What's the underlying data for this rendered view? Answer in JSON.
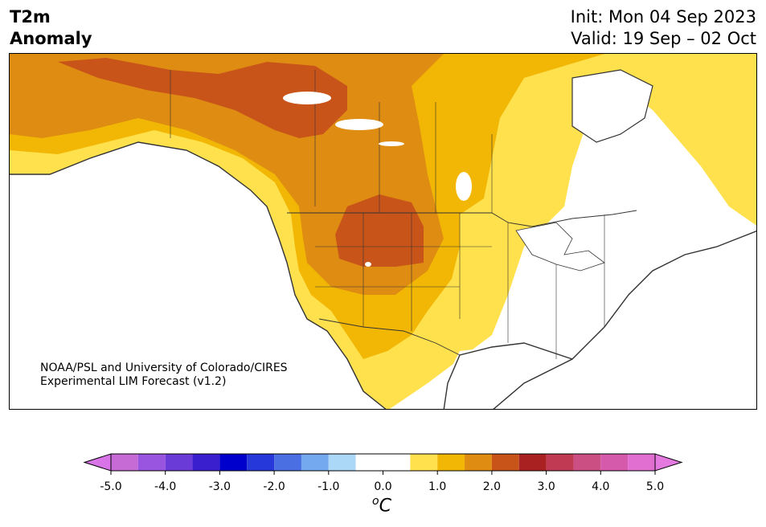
{
  "header": {
    "title_line1": "T2m",
    "title_line2": "Anomaly",
    "init": "Init: Mon 04 Sep 2023",
    "valid": "Valid: 19 Sep – 02 Oct"
  },
  "map": {
    "credit_line1": "NOAA/PSL and University of Colorado/CIRES",
    "credit_line2": "Experimental LIM Forecast (v1.2)",
    "colors": {
      "land_neutral": "#ffffff",
      "anom_0_5_1": "#ffe14d",
      "anom_1_1_5": "#f2b705",
      "anom_1_5_2": "#de8c12",
      "anom_2_2_5": "#c8541a",
      "coast": "#333333"
    }
  },
  "colorbar": {
    "unit": "C",
    "unit_sup": "o",
    "ticks": [
      "-5.0",
      "-4.0",
      "-3.0",
      "-2.0",
      "-1.0",
      "0.0",
      "1.0",
      "2.0",
      "3.0",
      "4.0",
      "5.0"
    ],
    "tick_values": [
      -5,
      -4,
      -3,
      -2,
      -1,
      0,
      1,
      2,
      3,
      4,
      5
    ],
    "bins": [
      -5,
      -4.5,
      -4,
      -3.5,
      -3,
      -2.5,
      -2,
      -1.5,
      -1,
      -0.5,
      0.5,
      1,
      1.5,
      2,
      2.5,
      3,
      3.5,
      4,
      4.5,
      5
    ],
    "colors": [
      "#c66bd6",
      "#9a55e0",
      "#6b3bd8",
      "#3a1fcf",
      "#0000cc",
      "#2638d9",
      "#4a6fe3",
      "#74a9ef",
      "#aad8f6",
      "#ffffff",
      "#ffe14d",
      "#f2b705",
      "#de8c12",
      "#c8541a",
      "#aa2121",
      "#c03a54",
      "#cc4f83",
      "#d65aab",
      "#e16fd2"
    ],
    "under_color": "#d873e8",
    "over_color": "#e47ae0"
  }
}
